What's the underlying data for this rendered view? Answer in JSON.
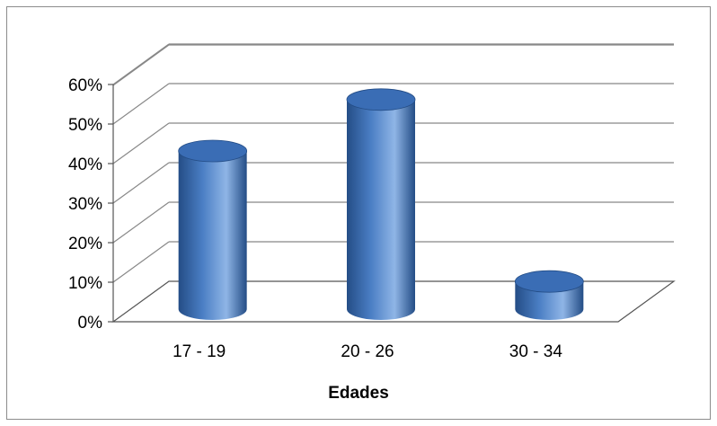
{
  "chart_data": {
    "type": "bar",
    "style": "3d-cylinder",
    "title": "",
    "xlabel": "Edades",
    "ylabel": "",
    "categories": [
      "17 - 19",
      "20 - 26",
      "30 - 34"
    ],
    "series": [
      {
        "values": [
          0.4,
          0.53,
          0.07
        ]
      }
    ],
    "ylim": [
      0,
      0.6
    ],
    "y_ticks": [
      0,
      0.1,
      0.2,
      0.3,
      0.4,
      0.5,
      0.6
    ],
    "y_tick_labels": [
      "0%",
      "10%",
      "20%",
      "30%",
      "40%",
      "50%",
      "60%"
    ],
    "grid": true,
    "legend": "none",
    "colors": {
      "bar_fill": "#4a7ec4",
      "bar_dark": "#244d86",
      "bar_light": "#8fb5e6",
      "bar_top": "#3a6db5",
      "grid": "#888888",
      "axis": "#555555"
    }
  }
}
